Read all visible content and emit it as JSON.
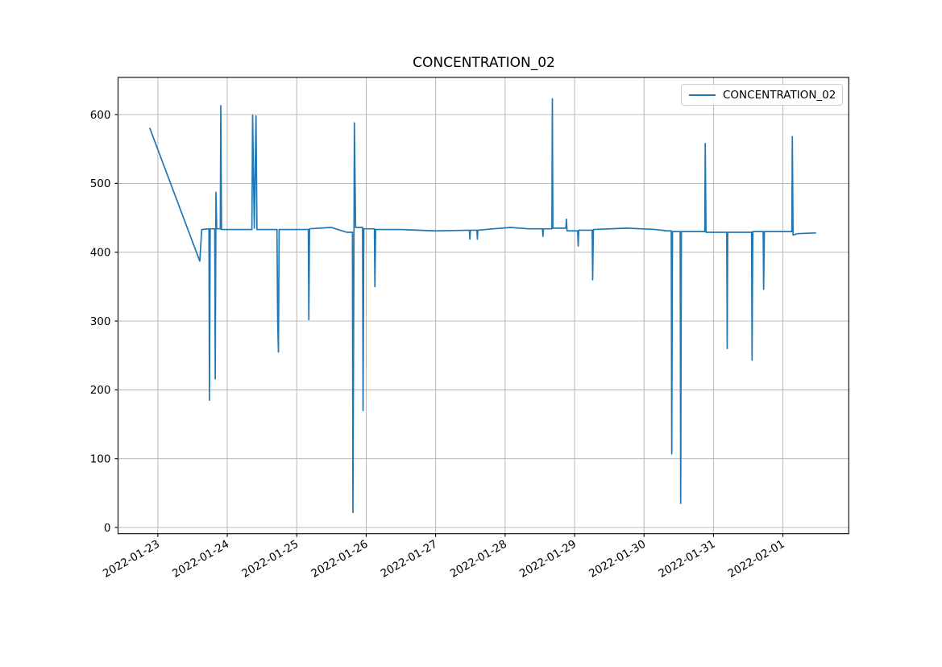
{
  "figure": {
    "background": "#ffffff"
  },
  "chart_data": {
    "type": "line",
    "title": "CONCENTRATION_02",
    "xlabel": "",
    "ylabel": "",
    "grid": true,
    "legend": {
      "label": "CONCENTRATION_02",
      "position": "upper right"
    },
    "colors": {
      "line": "#1f77b4",
      "grid": "#b0b0b0",
      "axis": "#000000",
      "text": "#000000",
      "legend_border": "#cccccc"
    },
    "ylim": [
      -9,
      654
    ],
    "yticks": [
      0,
      100,
      200,
      300,
      400,
      500,
      600
    ],
    "x_axis": {
      "start": "2022-01-22T10:15",
      "end": "2022-02-01T22:45"
    },
    "xticks": [
      "2022-01-23",
      "2022-01-24",
      "2022-01-25",
      "2022-01-26",
      "2022-01-27",
      "2022-01-28",
      "2022-01-29",
      "2022-01-30",
      "2022-01-31",
      "2022-02-01"
    ],
    "series": [
      {
        "name": "CONCENTRATION_02",
        "points": [
          [
            "2022-01-22T21:15",
            580
          ],
          [
            "2022-01-23T14:30",
            387
          ],
          [
            "2022-01-23T15:10",
            433
          ],
          [
            "2022-01-23T17:40",
            434
          ],
          [
            "2022-01-23T17:50",
            185
          ],
          [
            "2022-01-23T18:05",
            434
          ],
          [
            "2022-01-23T19:40",
            434
          ],
          [
            "2022-01-23T19:50",
            216
          ],
          [
            "2022-01-23T20:05",
            487
          ],
          [
            "2022-01-23T20:20",
            434
          ],
          [
            "2022-01-23T21:35",
            434
          ],
          [
            "2022-01-23T21:45",
            613
          ],
          [
            "2022-01-23T22:00",
            433
          ],
          [
            "2022-01-24T08:30",
            433
          ],
          [
            "2022-01-24T08:45",
            599
          ],
          [
            "2022-01-24T09:20",
            435
          ],
          [
            "2022-01-24T09:55",
            598
          ],
          [
            "2022-01-24T10:15",
            433
          ],
          [
            "2022-01-24T17:10",
            433
          ],
          [
            "2022-01-24T17:25",
            298
          ],
          [
            "2022-01-24T17:40",
            255
          ],
          [
            "2022-01-24T17:55",
            433
          ],
          [
            "2022-01-25T04:00",
            433
          ],
          [
            "2022-01-25T04:10",
            302
          ],
          [
            "2022-01-25T04:25",
            434
          ],
          [
            "2022-01-25T12:00",
            436
          ],
          [
            "2022-01-25T17:15",
            429
          ],
          [
            "2022-01-25T19:15",
            429
          ],
          [
            "2022-01-25T19:25",
            22
          ],
          [
            "2022-01-25T19:55",
            588
          ],
          [
            "2022-01-25T20:20",
            436
          ],
          [
            "2022-01-25T22:45",
            436
          ],
          [
            "2022-01-25T22:55",
            170
          ],
          [
            "2022-01-25T23:10",
            434
          ],
          [
            "2022-01-26T02:50",
            434
          ],
          [
            "2022-01-26T03:00",
            350
          ],
          [
            "2022-01-26T03:15",
            433
          ],
          [
            "2022-01-26T12:00",
            433
          ],
          [
            "2022-01-27T00:00",
            431
          ],
          [
            "2022-01-27T11:40",
            432
          ],
          [
            "2022-01-27T11:50",
            419
          ],
          [
            "2022-01-27T12:00",
            432
          ],
          [
            "2022-01-27T14:15",
            432
          ],
          [
            "2022-01-27T14:25",
            419
          ],
          [
            "2022-01-27T14:35",
            432
          ],
          [
            "2022-01-27T20:00",
            434
          ],
          [
            "2022-01-28T02:00",
            436
          ],
          [
            "2022-01-28T08:00",
            434
          ],
          [
            "2022-01-28T12:55",
            434
          ],
          [
            "2022-01-28T13:05",
            423
          ],
          [
            "2022-01-28T13:15",
            434
          ],
          [
            "2022-01-28T16:10",
            434
          ],
          [
            "2022-01-28T16:20",
            623
          ],
          [
            "2022-01-28T16:30",
            435
          ],
          [
            "2022-01-28T21:00",
            435
          ],
          [
            "2022-01-28T21:10",
            448
          ],
          [
            "2022-01-28T21:25",
            431
          ],
          [
            "2022-01-29T01:05",
            431
          ],
          [
            "2022-01-29T01:15",
            409
          ],
          [
            "2022-01-29T01:25",
            432
          ],
          [
            "2022-01-29T06:05",
            432
          ],
          [
            "2022-01-29T06:15",
            360
          ],
          [
            "2022-01-29T06:30",
            433
          ],
          [
            "2022-01-29T18:00",
            435
          ],
          [
            "2022-01-30T04:00",
            433
          ],
          [
            "2022-01-30T08:00",
            431
          ],
          [
            "2022-01-30T09:25",
            431
          ],
          [
            "2022-01-30T09:35",
            107
          ],
          [
            "2022-01-30T09:50",
            430
          ],
          [
            "2022-01-30T12:30",
            430
          ],
          [
            "2022-01-30T12:40",
            35
          ],
          [
            "2022-01-30T12:55",
            430
          ],
          [
            "2022-01-30T21:00",
            430
          ],
          [
            "2022-01-30T21:10",
            558
          ],
          [
            "2022-01-30T21:25",
            429
          ],
          [
            "2022-01-31T04:35",
            429
          ],
          [
            "2022-01-31T04:45",
            260
          ],
          [
            "2022-01-31T04:55",
            429
          ],
          [
            "2022-01-31T13:10",
            429
          ],
          [
            "2022-01-31T13:20",
            243
          ],
          [
            "2022-01-31T13:35",
            430
          ],
          [
            "2022-01-31T17:10",
            430
          ],
          [
            "2022-01-31T17:20",
            346
          ],
          [
            "2022-01-31T17:35",
            430
          ],
          [
            "2022-02-01T00:00",
            430
          ],
          [
            "2022-02-01T03:05",
            430
          ],
          [
            "2022-02-01T03:15",
            568
          ],
          [
            "2022-02-01T03:30",
            425
          ],
          [
            "2022-02-01T05:00",
            427
          ],
          [
            "2022-02-01T11:15",
            428
          ]
        ]
      }
    ]
  }
}
